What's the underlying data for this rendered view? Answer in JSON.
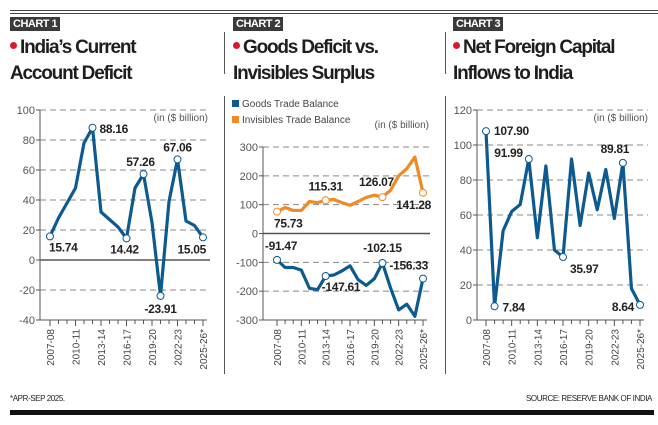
{
  "colors": {
    "goods": "#0d5a8f",
    "invisibles": "#f08a24",
    "accent": "#d7192b",
    "line": "#0d5a8f"
  },
  "panels": [
    {
      "badge": "CHART 1",
      "title_line1": "India’s Current",
      "title_line2": "Account Deficit",
      "unit": "(in ($ billion)"
    },
    {
      "badge": "CHART 2",
      "title_line1": "Goods Deficit vs.",
      "title_line2": "Invisibles Surplus",
      "unit": "(in ($ billion)"
    },
    {
      "badge": "CHART 3",
      "title_line1": "Net Foreign Capital",
      "title_line2": "Inflows to India",
      "unit": "(in ($ billion)"
    }
  ],
  "footer": {
    "note": "*APR-SEP 2025.",
    "source": "SOURCE: RESERVE BANK OF INDIA"
  },
  "chart_data": [
    {
      "type": "line",
      "title": "India’s Current Account Deficit",
      "ylabel": "(in ($ billion)",
      "ylim": [
        -40,
        100
      ],
      "yticks": [
        100,
        80,
        60,
        40,
        20,
        0,
        -20,
        -40
      ],
      "grid": true,
      "x": [
        "2007-08",
        "2008-09",
        "2009-10",
        "2010-11",
        "2011-12",
        "2012-13",
        "2013-14",
        "2014-15",
        "2015-16",
        "2016-17",
        "2017-18",
        "2018-19",
        "2019-20",
        "2020-21",
        "2021-22",
        "2022-23",
        "2023-24",
        "2024-25",
        "2025-26*"
      ],
      "xtick_labels": [
        "2007-08",
        "2010-11",
        "2013-14",
        "2016-17",
        "2019-20",
        "2022-23",
        "2025-26*"
      ],
      "series": [
        {
          "values": [
            15.74,
            28,
            38,
            48,
            78,
            88.16,
            32,
            27,
            22,
            14.42,
            48,
            57.26,
            25,
            -23.91,
            39,
            67.06,
            26,
            23,
            15.05
          ],
          "labels": {
            "0": "15.74",
            "5": "88.16",
            "9": "14.42",
            "11": "57.26",
            "13": "-23.91",
            "15": "67.06",
            "18": "15.05"
          }
        }
      ]
    },
    {
      "type": "line",
      "title": "Goods Deficit vs. Invisibles Surplus",
      "ylabel": "(in ($ billion)",
      "ylim": [
        -300,
        300
      ],
      "yticks": [
        300,
        200,
        100,
        0,
        -100,
        -200,
        -300
      ],
      "grid": true,
      "legend": "top-left",
      "x": [
        "2007-08",
        "2008-09",
        "2009-10",
        "2010-11",
        "2011-12",
        "2012-13",
        "2013-14",
        "2014-15",
        "2015-16",
        "2016-17",
        "2017-18",
        "2018-19",
        "2019-20",
        "2020-21",
        "2021-22",
        "2022-23",
        "2023-24",
        "2024-25",
        "2025-26*"
      ],
      "xtick_labels": [
        "2007-08",
        "2010-11",
        "2013-14",
        "2016-17",
        "2019-20",
        "2022-23",
        "2025-26*"
      ],
      "series": [
        {
          "name": "Goods Trade Balance",
          "values": [
            -91.47,
            -118,
            -118,
            -127,
            -190,
            -195,
            -147.61,
            -144,
            -130,
            -112,
            -160,
            -180,
            -157,
            -102.15,
            -189,
            -265,
            -245,
            -287,
            -156.33
          ],
          "labels": {
            "0": "-91.47",
            "6": "-147.61",
            "13": "-102.15",
            "18": "-156.33"
          }
        },
        {
          "name": "Invisibles Trade Balance",
          "values": [
            75.73,
            90,
            80,
            80,
            111,
            107,
            115.31,
            118,
            107,
            98,
            111,
            125,
            133,
            126.07,
            150,
            200,
            225,
            265,
            141.28
          ],
          "labels": {
            "0": "75.73",
            "6": "115.31",
            "13": "126.07",
            "18": "141.28"
          }
        }
      ]
    },
    {
      "type": "line",
      "title": "Net Foreign Capital Inflows to India",
      "ylabel": "(in ($ billion)",
      "ylim": [
        0,
        120
      ],
      "yticks": [
        120,
        100,
        80,
        60,
        40,
        20,
        0
      ],
      "grid": true,
      "x": [
        "2007-08",
        "2008-09",
        "2009-10",
        "2010-11",
        "2011-12",
        "2012-13",
        "2013-14",
        "2014-15",
        "2015-16",
        "2016-17",
        "2017-18",
        "2018-19",
        "2019-20",
        "2020-21",
        "2021-22",
        "2022-23",
        "2023-24",
        "2024-25",
        "2025-26*"
      ],
      "xtick_labels": [
        "2007-08",
        "2010-11",
        "2013-14",
        "2016-17",
        "2019-20",
        "2022-23",
        "2025-26*"
      ],
      "series": [
        {
          "values": [
            107.9,
            7.84,
            51,
            62,
            66,
            91.99,
            47,
            88,
            40,
            35.97,
            92,
            54,
            84,
            63,
            86,
            58,
            89.81,
            18,
            8.64
          ],
          "labels": {
            "0": "107.90",
            "1": "7.84",
            "5": "91.99",
            "9": "35.97",
            "16": "89.81",
            "18": "8.64"
          }
        }
      ]
    }
  ]
}
